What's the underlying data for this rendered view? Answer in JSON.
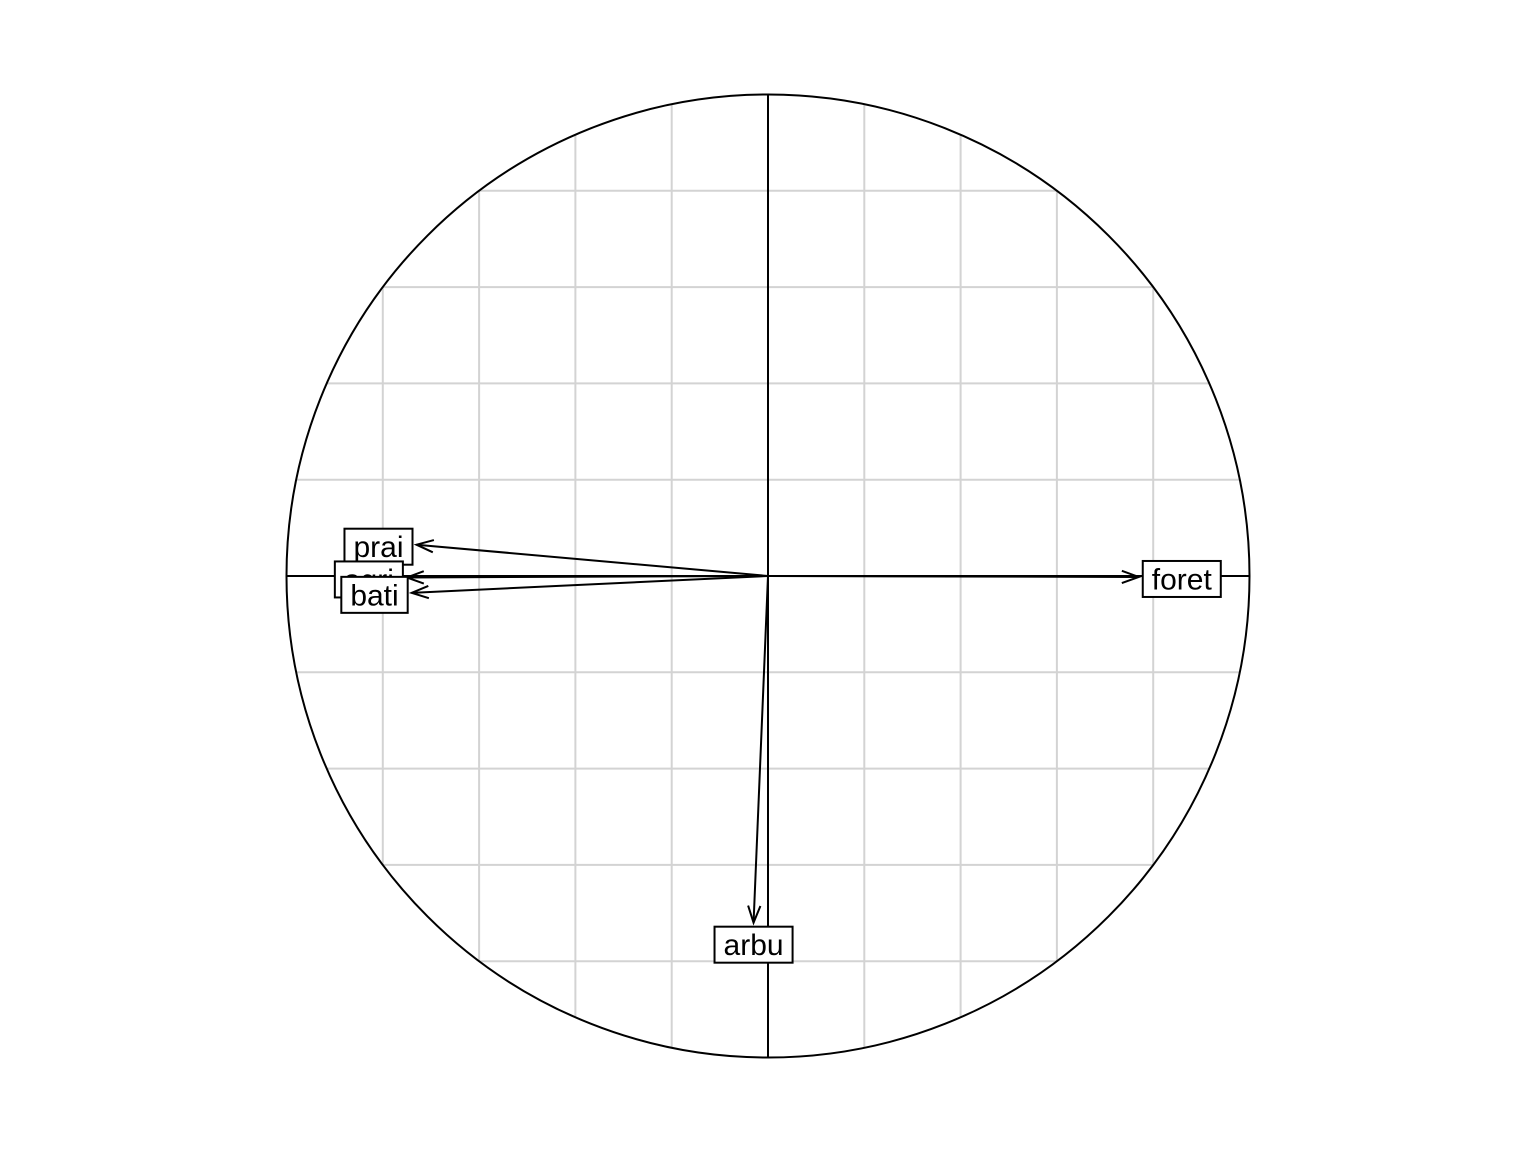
{
  "chart_data": {
    "type": "scatter",
    "variables": [
      {
        "name": "prai",
        "x": -0.73,
        "y": 0.065
      },
      {
        "name": "agri",
        "x": -0.75,
        "y": -0.003
      },
      {
        "name": "bati",
        "x": -0.74,
        "y": -0.035
      },
      {
        "name": "foret",
        "x": 0.77,
        "y": -0.002
      },
      {
        "name": "arbu",
        "x": -0.03,
        "y": -0.72
      }
    ],
    "xlim": [
      -1,
      1
    ],
    "ylim": [
      -1,
      1
    ],
    "grid": true,
    "grid_step": 0.2,
    "correlation_circle": true,
    "legend": "none"
  }
}
